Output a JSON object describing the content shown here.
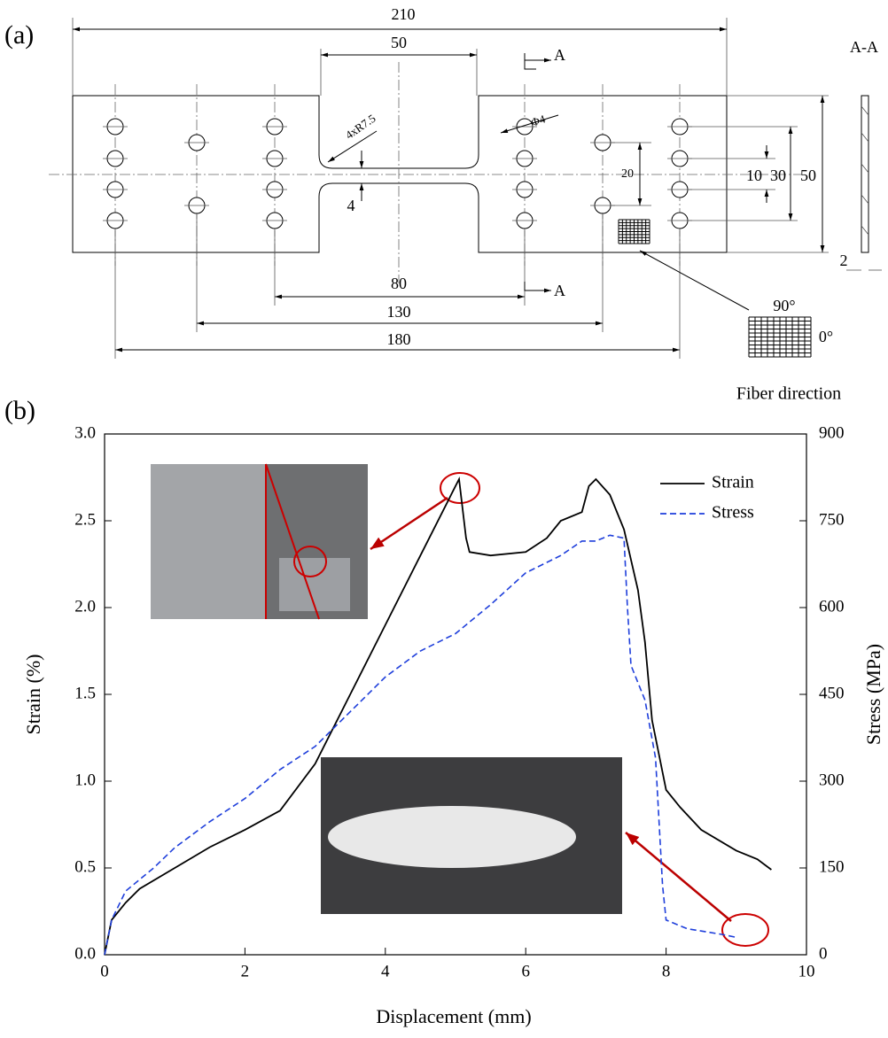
{
  "drawing": {
    "panel_label": "(a)",
    "dim_210": "210",
    "dim_50_top": "50",
    "section_mark_top": "A",
    "section_mark_bottom": "A",
    "section_title": "A-A",
    "fillet": "4xR7.5",
    "hole": "Φ4",
    "dim_20": "20",
    "dim_10": "10",
    "dim_30": "30",
    "dim_50_right": "50",
    "dim_4": "4",
    "dim_80": "80",
    "dim_130": "130",
    "dim_180": "180",
    "dim_2": "2",
    "fiber_90": "90°",
    "fiber_0": "0°",
    "fiber_caption": "Fiber direction"
  },
  "chart_data": {
    "type": "line",
    "panel_label": "(b)",
    "x_label": "Displacement (mm)",
    "y_label": "Strain (%)",
    "y2_label": "Stress (MPa)",
    "xlim": [
      0,
      10
    ],
    "xticks": [
      0,
      2,
      4,
      6,
      8,
      10
    ],
    "ylim": [
      0,
      3
    ],
    "yticks": [
      {
        "value": 0,
        "label": "0.0"
      },
      0.5,
      {
        "value": 1,
        "label": "1.0"
      },
      1.5,
      {
        "value": 2,
        "label": "2.0"
      },
      2.5,
      {
        "value": 3,
        "label": "3.0"
      }
    ],
    "y2lim": [
      0,
      900
    ],
    "y2ticks": [
      0,
      150,
      300,
      450,
      600,
      750,
      900
    ],
    "legend": "upper right",
    "series": [
      {
        "name": "Strain",
        "color": "#000000",
        "line_style": "solid",
        "x": [
          0,
          0.1,
          0.3,
          0.5,
          1,
          1.5,
          2,
          2.5,
          3,
          3.5,
          4,
          4.5,
          5,
          5.05,
          5.15,
          5.2,
          5.5,
          6,
          6.3,
          6.5,
          6.8,
          6.9,
          7.0,
          7.2,
          7.4,
          7.6,
          7.7,
          7.8,
          8,
          8.2,
          8.5,
          9,
          9.3,
          9.5
        ],
        "values": [
          0,
          0.2,
          0.3,
          0.38,
          0.5,
          0.62,
          0.72,
          0.83,
          1.1,
          1.5,
          1.9,
          2.3,
          2.7,
          2.74,
          2.4,
          2.32,
          2.3,
          2.32,
          2.4,
          2.5,
          2.55,
          2.7,
          2.74,
          2.65,
          2.45,
          2.1,
          1.8,
          1.35,
          0.95,
          0.85,
          0.72,
          0.6,
          0.55,
          0.49
        ]
      },
      {
        "name": "Stress",
        "color": "#1f3fdb",
        "line_style": "dashed",
        "axis": "y2",
        "x": [
          0,
          0.1,
          0.3,
          0.7,
          1,
          1.5,
          2,
          2.5,
          3,
          3.5,
          4,
          4.5,
          5,
          5.5,
          6,
          6.5,
          6.8,
          7,
          7.2,
          7.4,
          7.45,
          7.5,
          7.7,
          7.85,
          7.95,
          8.0,
          8.3,
          8.8,
          9.0
        ],
        "values": [
          0,
          60,
          110,
          150,
          185,
          230,
          270,
          320,
          360,
          420,
          480,
          525,
          555,
          605,
          660,
          690,
          715,
          715,
          725,
          720,
          600,
          500,
          440,
          340,
          120,
          60,
          45,
          35,
          30
        ]
      }
    ]
  }
}
